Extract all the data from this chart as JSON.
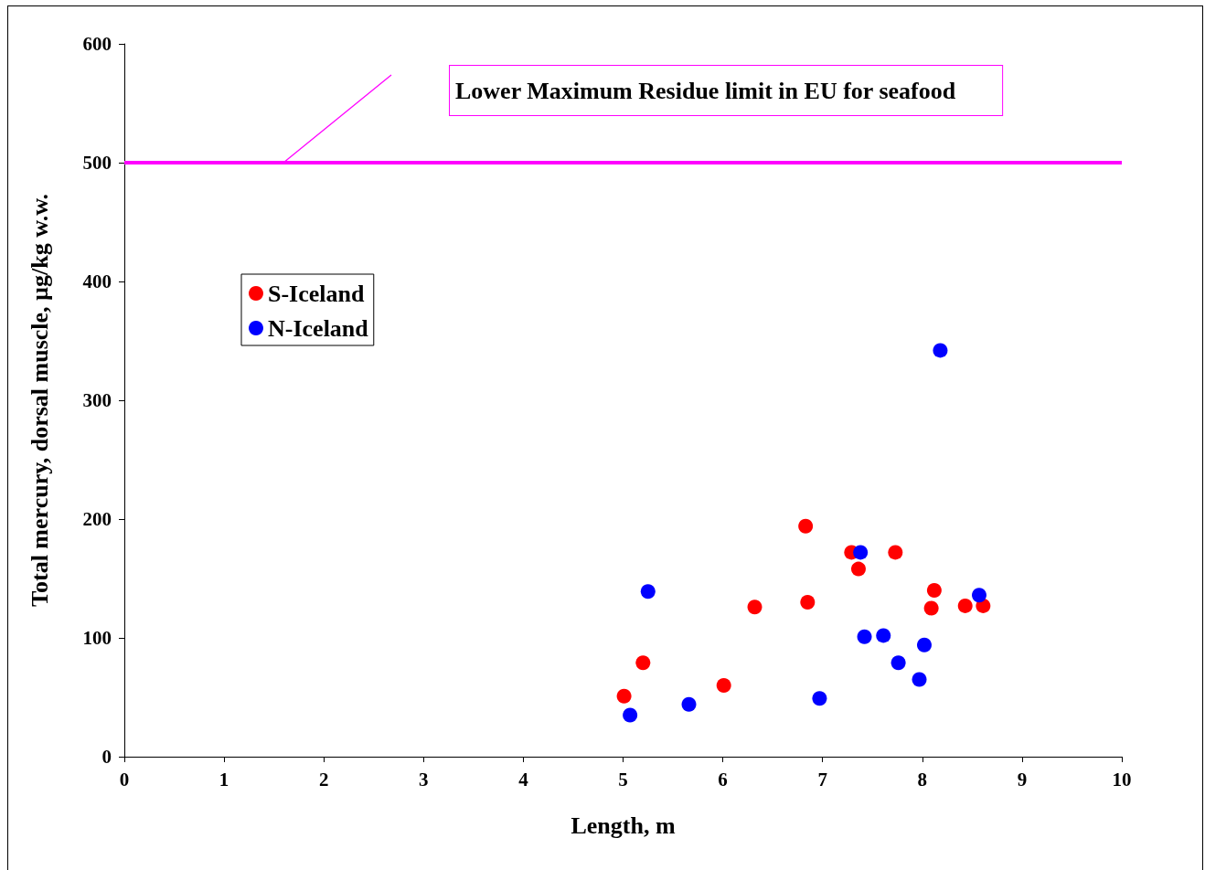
{
  "chart_data": {
    "type": "scatter",
    "xlabel": "Length, m",
    "ylabel": "Total mercury, dorsal muscle, µg/kg w.w.",
    "xlim": [
      0,
      10
    ],
    "xticks": [
      0,
      1,
      2,
      3,
      4,
      5,
      6,
      7,
      8,
      9,
      10
    ],
    "ylim": [
      0,
      600
    ],
    "yticks": [
      0,
      100,
      200,
      300,
      400,
      500,
      600
    ],
    "grid": false,
    "legend": "left",
    "marker": "circle",
    "series": [
      {
        "name": "S-Iceland",
        "color": "#ff0000",
        "x": [
          5.01,
          5.2,
          6.01,
          6.32,
          6.83,
          6.85,
          7.29,
          7.36,
          7.73,
          8.12,
          8.09,
          8.43,
          8.61
        ],
        "values": [
          51,
          79,
          60,
          126,
          194,
          130,
          172,
          158,
          172,
          140,
          125,
          127,
          127
        ]
      },
      {
        "name": "N-Iceland",
        "color": "#0000ff",
        "x": [
          5.07,
          5.25,
          5.66,
          6.97,
          7.38,
          7.42,
          7.61,
          7.76,
          7.97,
          8.02,
          8.18,
          8.57
        ],
        "values": [
          35,
          139,
          44,
          49,
          172,
          101,
          102,
          79,
          65,
          94,
          342,
          136
        ]
      }
    ],
    "ref_lines": [
      {
        "axis": "y",
        "value": 500,
        "label": "Lower Maximum Residue limit in EU for seafood",
        "color": "#ff00ff",
        "line_style": "solid"
      }
    ]
  }
}
